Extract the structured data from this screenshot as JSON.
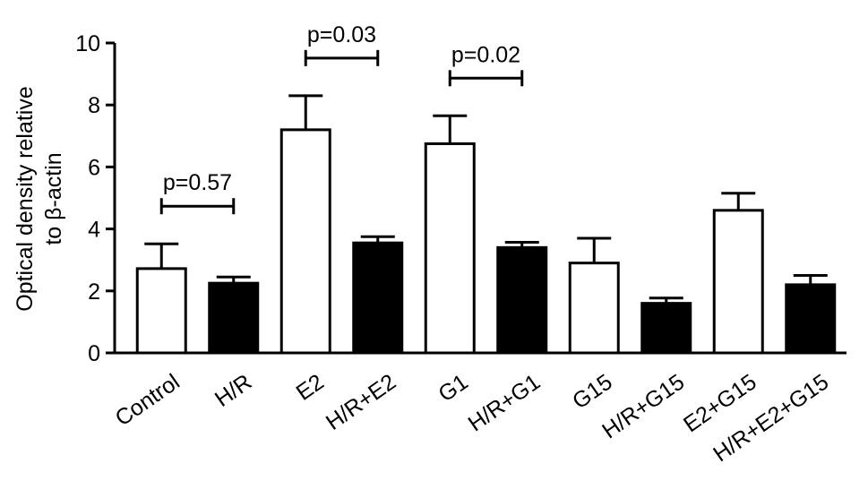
{
  "chart_data": {
    "type": "bar",
    "ylabel": [
      "Optical density relative",
      "to β-actin"
    ],
    "categories": [
      "Control",
      "H/R",
      "E2",
      "H/R+E2",
      "G1",
      "H/R+G1",
      "G15",
      "H/R+G15",
      "E2+G15",
      "H/R+E2+G15"
    ],
    "values": [
      2.72,
      2.25,
      7.2,
      3.55,
      6.75,
      3.4,
      2.9,
      1.6,
      4.6,
      2.2
    ],
    "errors": [
      0.8,
      0.2,
      1.1,
      0.2,
      0.9,
      0.17,
      0.8,
      0.17,
      0.55,
      0.3
    ],
    "colors": [
      "#ffffff",
      "#000000",
      "#ffffff",
      "#000000",
      "#ffffff",
      "#000000",
      "#ffffff",
      "#000000",
      "#ffffff",
      "#000000"
    ],
    "ylim": [
      0,
      10
    ],
    "yticks": [
      0,
      2,
      4,
      6,
      8,
      10
    ],
    "annotations": [
      {
        "text": "p=0.57",
        "between": [
          "Control",
          "H/R"
        ]
      },
      {
        "text": "p=0.03",
        "between": [
          "E2",
          "H/R+E2"
        ]
      },
      {
        "text": "p=0.02",
        "between": [
          "G1",
          "H/R+G1"
        ]
      }
    ]
  }
}
